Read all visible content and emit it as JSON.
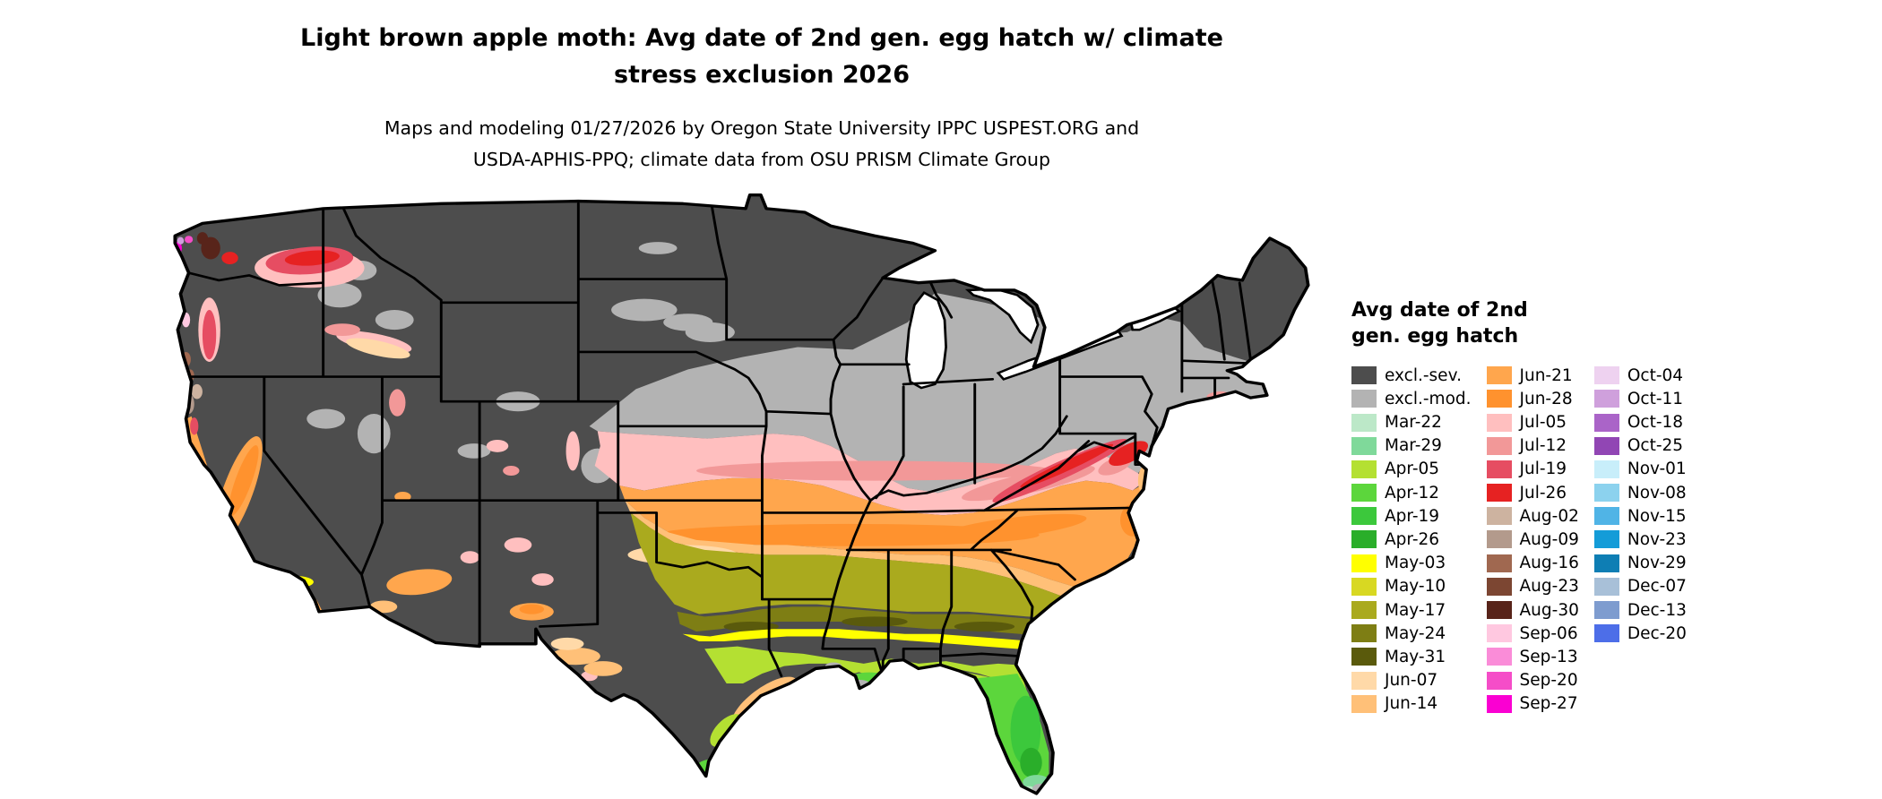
{
  "header": {
    "title": "Light brown apple moth: Avg date of 2nd gen. egg hatch w/ climate stress exclusion 2026",
    "subtitle": "Maps and modeling 01/27/2026 by Oregon State University IPPC USPEST.ORG and USDA-APHIS-PPQ; climate data from OSU PRISM Climate Group"
  },
  "legend": {
    "title": "Avg date of 2nd gen. egg hatch",
    "columns": [
      [
        "excl.-sev.",
        "excl.-mod.",
        "Mar-22",
        "Mar-29",
        "Apr-05",
        "Apr-12",
        "Apr-19",
        "Apr-26",
        "May-03",
        "May-10",
        "May-17",
        "May-24",
        "May-31",
        "Jun-07",
        "Jun-14"
      ],
      [
        "Jun-21",
        "Jun-28",
        "Jul-05",
        "Jul-12",
        "Jul-19",
        "Jul-26",
        "Aug-02",
        "Aug-09",
        "Aug-16",
        "Aug-23",
        "Aug-30",
        "Sep-06",
        "Sep-13",
        "Sep-20",
        "Sep-27"
      ],
      [
        "Oct-04",
        "Oct-11",
        "Oct-18",
        "Oct-25",
        "Nov-01",
        "Nov-08",
        "Nov-15",
        "Nov-23",
        "Nov-29",
        "Dec-07",
        "Dec-13",
        "Dec-20"
      ]
    ]
  },
  "palette": {
    "excl.-sev.": "#4d4d4d",
    "excl.-mod.": "#b3b3b3",
    "Mar-22": "#bce8c8",
    "Mar-29": "#7fd99a",
    "Apr-05": "#b4e032",
    "Apr-12": "#5cd63c",
    "Apr-19": "#3cc83c",
    "Apr-26": "#2aae2a",
    "May-03": "#ffff00",
    "May-10": "#d8d822",
    "May-17": "#aaaa1e",
    "May-24": "#7e7e14",
    "May-31": "#5a5a0c",
    "Jun-07": "#ffd9a8",
    "Jun-14": "#ffc078",
    "Jun-21": "#ffa64d",
    "Jun-28": "#ff922e",
    "Jul-05": "#ffbfbf",
    "Jul-12": "#f29898",
    "Jul-19": "#e64d62",
    "Jul-26": "#e62222",
    "Aug-02": "#cdb3a0",
    "Aug-09": "#b39a8c",
    "Aug-16": "#a06850",
    "Aug-23": "#7c4632",
    "Aug-30": "#58241a",
    "Sep-06": "#ffc8e0",
    "Sep-13": "#fa8cd8",
    "Sep-20": "#f54dc8",
    "Sep-27": "#fa00d2",
    "Oct-04": "#eed2f0",
    "Oct-11": "#cfa0dc",
    "Oct-18": "#aa64c8",
    "Oct-25": "#9146b4",
    "Nov-01": "#c8eefa",
    "Nov-08": "#8cd2ee",
    "Nov-15": "#50b4e6",
    "Nov-23": "#149cd8",
    "Nov-29": "#0e7eb4",
    "Dec-07": "#a8c0d8",
    "Dec-13": "#7e9ccf",
    "Dec-20": "#4d6ee8"
  }
}
